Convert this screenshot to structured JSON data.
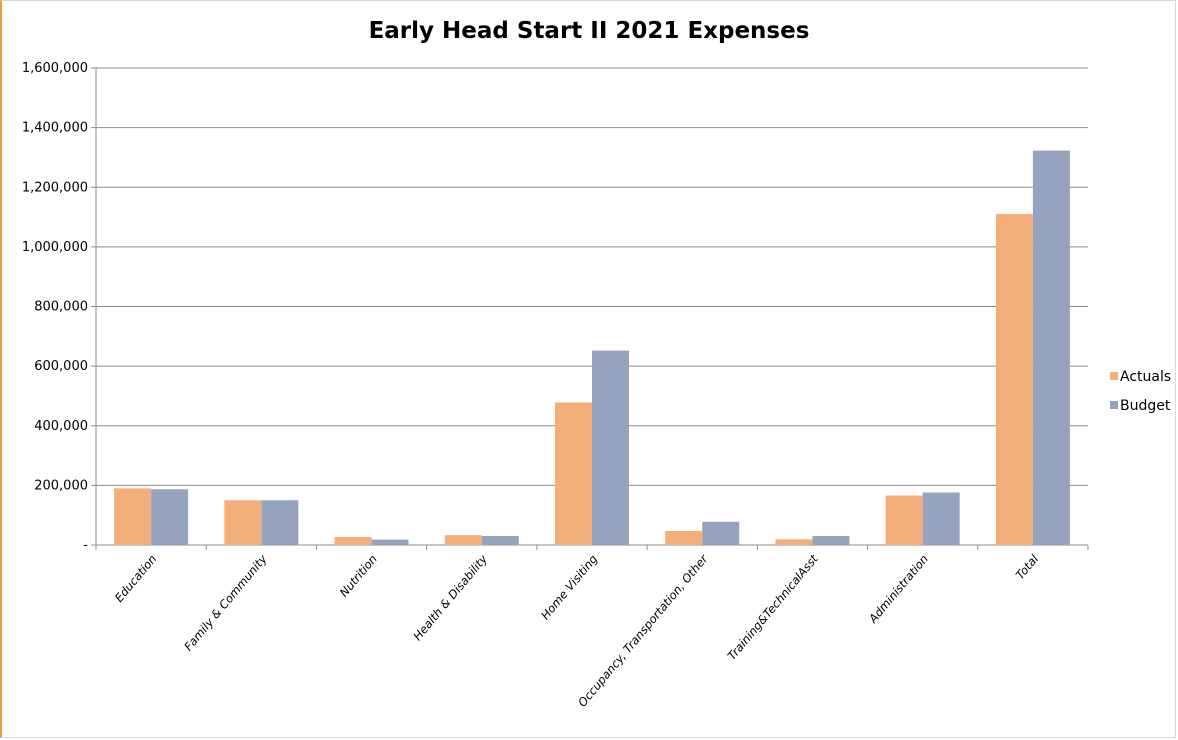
{
  "chart_data": {
    "type": "bar",
    "title": "Early Head Start II 2021 Expenses",
    "xlabel": "",
    "ylabel": "",
    "ylim": [
      0,
      1600000
    ],
    "yticks": [
      0,
      200000,
      400000,
      600000,
      800000,
      1000000,
      1200000,
      1400000,
      1600000
    ],
    "ytick_labels": [
      "-",
      "200,000",
      "400,000",
      "600,000",
      "800,000",
      "1,000,000",
      "1,200,000",
      "1,400,000",
      "1,600,000"
    ],
    "categories": [
      "Education",
      "Family & Community",
      "Nutrition",
      "Health & Disability",
      "Home Visiting",
      "Occupancy, Transportation, Other",
      "Training&TechnicalAsst",
      "Administration",
      "Total"
    ],
    "series": [
      {
        "name": "Actuals",
        "color": "#f4ae7a",
        "values": [
          190000,
          150000,
          27000,
          33000,
          478000,
          47000,
          19000,
          166000,
          1110000
        ]
      },
      {
        "name": "Budget",
        "color": "#95a3bf",
        "values": [
          187000,
          150000,
          18000,
          30000,
          652000,
          78000,
          30000,
          176000,
          1323000
        ]
      }
    ],
    "grid": true,
    "legend": "right"
  }
}
